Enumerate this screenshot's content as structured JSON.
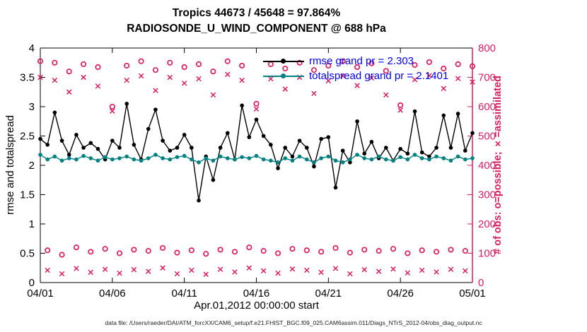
{
  "chart_data": {
    "type": "line",
    "title": "Tropics 44673 / 45648 = 97.864%",
    "subtitle": "RADIOSONDE_U_WIND_COMPONENT @ 688 hPa",
    "xlabel": "Apr.01,2012 00:00:00 start",
    "ylabel_left": "rmse and totalspread",
    "ylabel_right": "# of obs: o=possible; ×=assimilated",
    "x_range": [
      0,
      30
    ],
    "x_step": 0.5,
    "x_ticks": {
      "positions": [
        0,
        5,
        10,
        15,
        20,
        25,
        30
      ],
      "labels": [
        "04/01",
        "04/06",
        "04/11",
        "04/16",
        "04/21",
        "04/26",
        "05/01"
      ]
    },
    "left_axis": {
      "range": [
        0,
        4
      ],
      "ticks": [
        0,
        0.5,
        1,
        1.5,
        2,
        2.5,
        3,
        3.5,
        4
      ],
      "tick_labels": [
        "0",
        "0.5",
        "1",
        "1.5",
        "2",
        "2.5",
        "3",
        "3.5",
        "4"
      ]
    },
    "right_axis": {
      "range": [
        0,
        800
      ],
      "ticks": [
        0,
        100,
        200,
        300,
        400,
        500,
        600,
        700,
        800
      ],
      "tick_labels": [
        "0",
        "100",
        "200",
        "300",
        "400",
        "500",
        "600",
        "700",
        "800"
      ]
    },
    "colors": {
      "rmse": "#000000",
      "totalspread": "#008080",
      "obs": "#d81e5f",
      "legend_text": "#0000ee"
    },
    "legend": [
      {
        "label": "rmse grand pr = 2.303",
        "color_key": "rmse"
      },
      {
        "label": "totalspread grand pr = 2.1401",
        "color_key": "totalspread"
      }
    ],
    "grand_means": {
      "rmse": 2.303,
      "totalspread": 2.1401
    },
    "series": [
      {
        "name": "rmse",
        "axis": "left",
        "line": true,
        "marker": "dot",
        "color_key": "rmse",
        "values": [
          2.45,
          2.35,
          2.9,
          2.42,
          2.18,
          2.52,
          2.3,
          2.38,
          2.28,
          2.1,
          2.42,
          2.3,
          3.05,
          2.35,
          2.1,
          2.62,
          2.95,
          2.42,
          2.25,
          2.3,
          2.52,
          2.3,
          1.4,
          2.15,
          1.75,
          2.3,
          2.55,
          2.1,
          3.02,
          2.48,
          2.78,
          2.5,
          2.35,
          1.95,
          2.3,
          2.15,
          2.42,
          2.3,
          1.98,
          2.45,
          2.48,
          1.62,
          2.25,
          2.05,
          2.75,
          2.2,
          2.4,
          2.12,
          2.3,
          2.08,
          2.28,
          2.2,
          2.92,
          2.22,
          2.15,
          2.3,
          2.85,
          2.3,
          2.88,
          2.25,
          2.55
        ]
      },
      {
        "name": "totalspread",
        "axis": "left",
        "line": true,
        "marker": "dot",
        "color_key": "totalspread",
        "values": [
          2.18,
          2.1,
          2.15,
          2.08,
          2.12,
          2.1,
          2.16,
          2.12,
          2.08,
          2.14,
          2.1,
          2.12,
          2.15,
          2.1,
          2.08,
          2.12,
          2.18,
          2.12,
          2.1,
          2.14,
          2.16,
          2.1,
          2.05,
          2.12,
          2.08,
          2.15,
          2.12,
          2.1,
          2.14,
          2.12,
          2.16,
          2.1,
          2.08,
          2.05,
          2.12,
          2.08,
          2.15,
          2.1,
          2.05,
          2.12,
          2.15,
          2.08,
          2.05,
          2.1,
          2.18,
          2.12,
          2.1,
          2.15,
          2.1,
          2.08,
          2.14,
          2.1,
          2.18,
          2.12,
          2.1,
          2.15,
          2.12,
          2.08,
          2.15,
          2.1,
          2.12
        ]
      },
      {
        "name": "possible",
        "axis": "right",
        "line": false,
        "marker": "circle",
        "color_key": "obs",
        "values": [
          755,
          110,
          750,
          95,
          720,
          120,
          745,
          105,
          735,
          115,
          600,
          100,
          740,
          112,
          755,
          108,
          725,
          118,
          750,
          102,
          735,
          110,
          745,
          98,
          720,
          112,
          755,
          105,
          740,
          120,
          610,
          108,
          745,
          100,
          730,
          115,
          750,
          110,
          725,
          105,
          740,
          118,
          755,
          102,
          735,
          112,
          748,
          108,
          722,
          115,
          605,
          100,
          742,
          110,
          752,
          105,
          730,
          112,
          745,
          108,
          738
        ]
      },
      {
        "name": "assimilated",
        "axis": "right",
        "line": false,
        "marker": "x",
        "color_key": "obs",
        "values": [
          700,
          42,
          690,
          30,
          650,
          48,
          700,
          35,
          670,
          45,
          585,
          32,
          690,
          44,
          705,
          38,
          655,
          50,
          700,
          30,
          680,
          42,
          695,
          28,
          640,
          45,
          710,
          36,
          690,
          50,
          592,
          40,
          695,
          32,
          660,
          46,
          700,
          42,
          645,
          35,
          688,
          48,
          705,
          30,
          672,
          44,
          698,
          38,
          640,
          46,
          588,
          33,
          692,
          42,
          706,
          36,
          662,
          45,
          696,
          40,
          684
        ]
      }
    ]
  },
  "footer": {
    "text": "data file: /Users/raeder/DAI/ATM_forcXX/CAM6_setup/f.e21.FHIST_BGC.f09_025.CAM6assim.011/Diags_NTrS_2012-04/obs_diag_output.nc"
  }
}
